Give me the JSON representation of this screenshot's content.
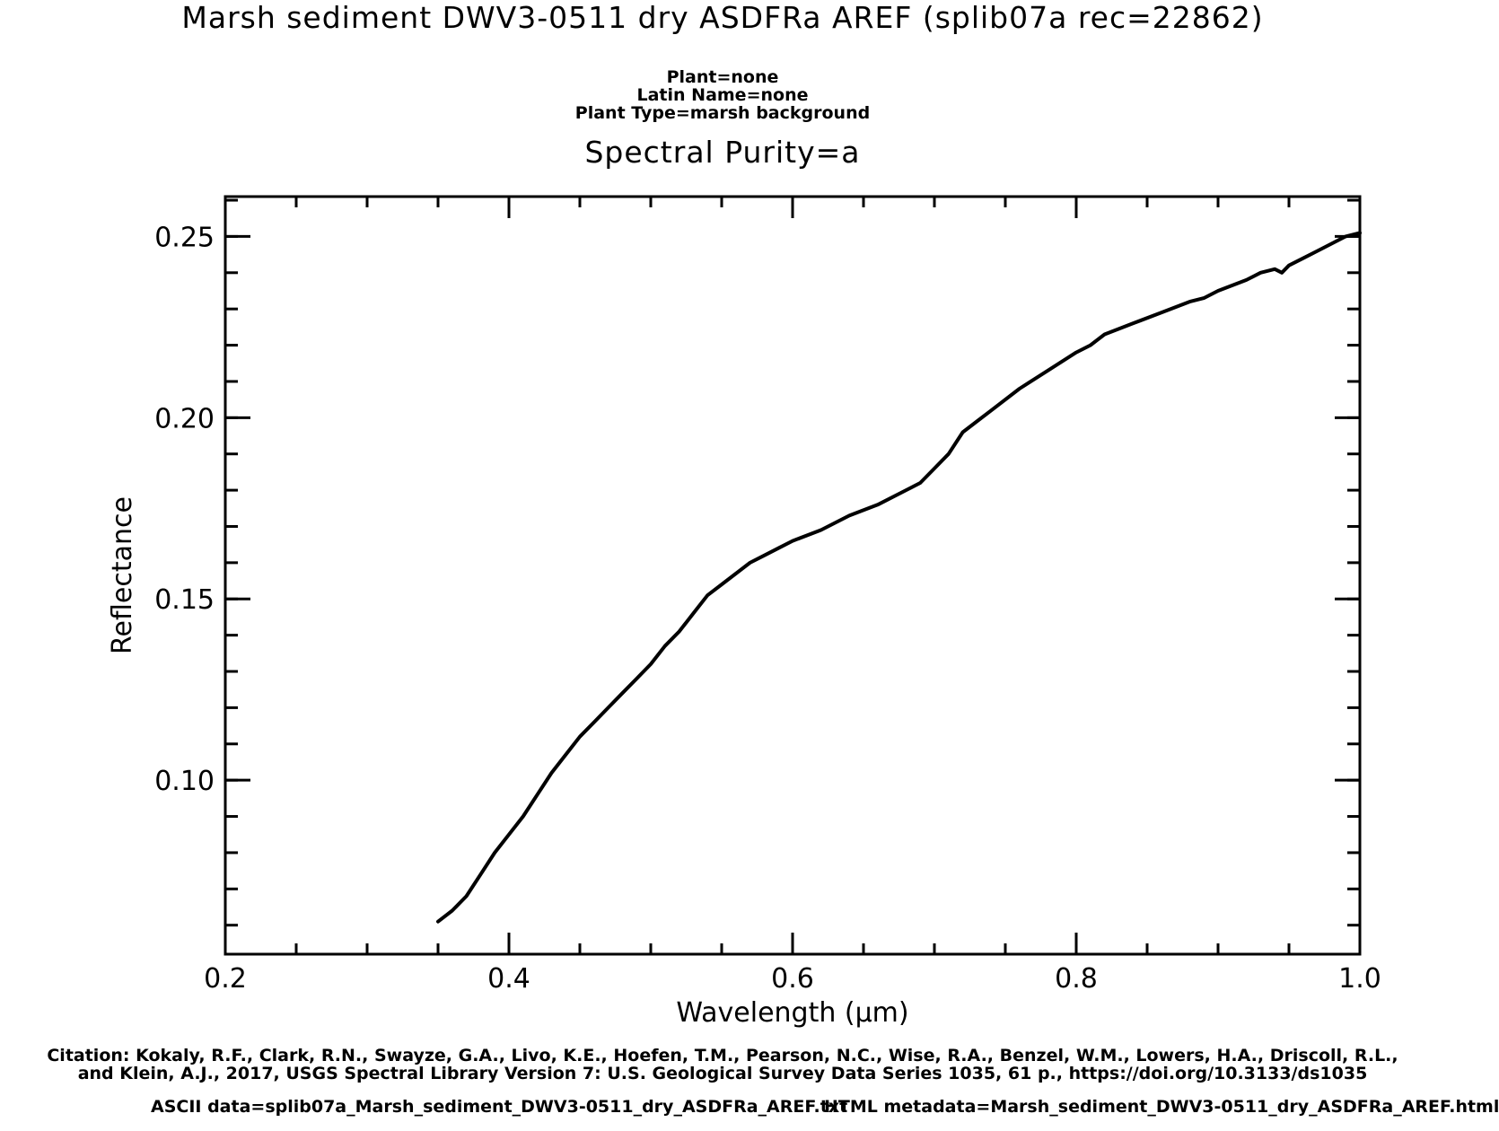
{
  "header": {
    "title": "Marsh sediment DWV3-0511 dry ASDFRa AREF   (splib07a rec=22862)",
    "meta_lines": [
      "Plant=none",
      "Latin Name=none",
      "Plant Type=marsh background"
    ],
    "purity": "Spectral Purity=a"
  },
  "chart_data": {
    "type": "line",
    "xlabel": "Wavelength (μm)",
    "ylabel": "Reflectance",
    "xlim": [
      0.2,
      1.0
    ],
    "ylim": [
      0.052,
      0.261
    ],
    "xticks": [
      0.2,
      0.4,
      0.6,
      0.8,
      1.0
    ],
    "xtick_labels": [
      "0.2",
      "0.4",
      "0.6",
      "0.8",
      "1.0"
    ],
    "yticks": [
      0.1,
      0.15,
      0.2,
      0.25
    ],
    "ytick_labels": [
      "0.10",
      "0.15",
      "0.20",
      "0.25"
    ],
    "x_minor_step": 0.05,
    "y_minor_step": 0.01,
    "grid": false,
    "series": [
      {
        "color": "#000000",
        "x": [
          0.35,
          0.36,
          0.37,
          0.38,
          0.39,
          0.4,
          0.41,
          0.42,
          0.43,
          0.44,
          0.45,
          0.46,
          0.47,
          0.48,
          0.49,
          0.5,
          0.51,
          0.52,
          0.53,
          0.54,
          0.55,
          0.56,
          0.57,
          0.58,
          0.59,
          0.6,
          0.62,
          0.64,
          0.66,
          0.68,
          0.69,
          0.7,
          0.71,
          0.72,
          0.73,
          0.74,
          0.76,
          0.78,
          0.8,
          0.81,
          0.82,
          0.84,
          0.86,
          0.88,
          0.89,
          0.9,
          0.92,
          0.93,
          0.94,
          0.945,
          0.95,
          0.96,
          0.97,
          0.98,
          0.99,
          1.0
        ],
        "y": [
          0.061,
          0.064,
          0.068,
          0.074,
          0.08,
          0.085,
          0.09,
          0.096,
          0.102,
          0.107,
          0.112,
          0.116,
          0.12,
          0.124,
          0.128,
          0.132,
          0.137,
          0.141,
          0.146,
          0.151,
          0.154,
          0.157,
          0.16,
          0.162,
          0.164,
          0.166,
          0.169,
          0.173,
          0.176,
          0.18,
          0.182,
          0.186,
          0.19,
          0.196,
          0.199,
          0.202,
          0.208,
          0.213,
          0.218,
          0.22,
          0.223,
          0.226,
          0.229,
          0.232,
          0.233,
          0.235,
          0.238,
          0.24,
          0.241,
          0.24,
          0.242,
          0.244,
          0.246,
          0.248,
          0.25,
          0.251
        ]
      }
    ]
  },
  "footer": {
    "citation_lines": [
      "Citation: Kokaly, R.F., Clark, R.N., Swayze, G.A., Livo, K.E., Hoefen, T.M., Pearson, N.C., Wise, R.A., Benzel, W.M., Lowers, H.A., Driscoll, R.L.,",
      "and Klein, A.J., 2017, USGS Spectral Library Version 7: U.S. Geological Survey Data Series 1035, 61 p., https://doi.org/10.3133/ds1035"
    ],
    "ascii": "ASCII data=splib07a_Marsh_sediment_DWV3-0511_dry_ASDFRa_AREF.txt",
    "html": "HTML metadata=Marsh_sediment_DWV3-0511_dry_ASDFRa_AREF.html"
  }
}
